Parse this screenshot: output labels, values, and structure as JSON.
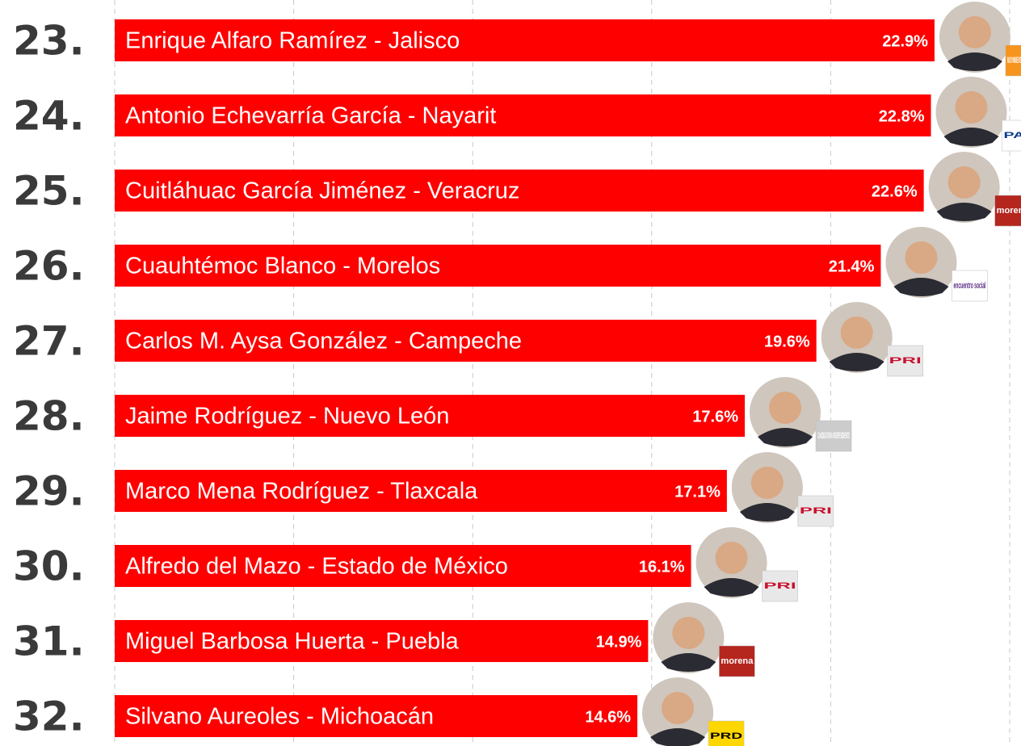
{
  "chart_data": {
    "type": "bar",
    "orientation": "horizontal",
    "ranks": [
      "23.",
      "24.",
      "25.",
      "26.",
      "27.",
      "28.",
      "29.",
      "30.",
      "31.",
      "32."
    ],
    "categories": [
      "Enrique Alfaro Ramírez - Jalisco",
      "Antonio Echevarría García - Nayarit",
      "Cuitláhuac García Jiménez - Veracruz",
      "Cuauhtémoc Blanco - Morelos",
      "Carlos M. Aysa González - Campeche",
      "Jaime Rodríguez - Nuevo León",
      "Marco Mena Rodríguez - Tlaxcala",
      "Alfredo del Mazo - Estado de México",
      "Miguel Barbosa Huerta - Puebla",
      "Silvano Aureoles - Michoacán"
    ],
    "values": [
      22.9,
      22.8,
      22.6,
      21.4,
      19.6,
      17.6,
      17.1,
      16.1,
      14.9,
      14.6
    ],
    "value_labels": [
      "22.9%",
      "22.8%",
      "22.6%",
      "21.4%",
      "19.6%",
      "17.6%",
      "17.1%",
      "16.1%",
      "14.9%",
      "14.6%"
    ],
    "parties": [
      "MOVIMIENTO CIUDADANO",
      "PAN",
      "morena",
      "encuentro social",
      "PRI",
      "CANDIDATURA INDEPENDIENTE",
      "PRI",
      "PRI",
      "morena",
      "PRD"
    ],
    "color": "#fe0000",
    "xlim": [
      0,
      25
    ],
    "xticks": [
      0,
      5,
      10,
      15,
      20,
      25
    ],
    "grid": true
  }
}
